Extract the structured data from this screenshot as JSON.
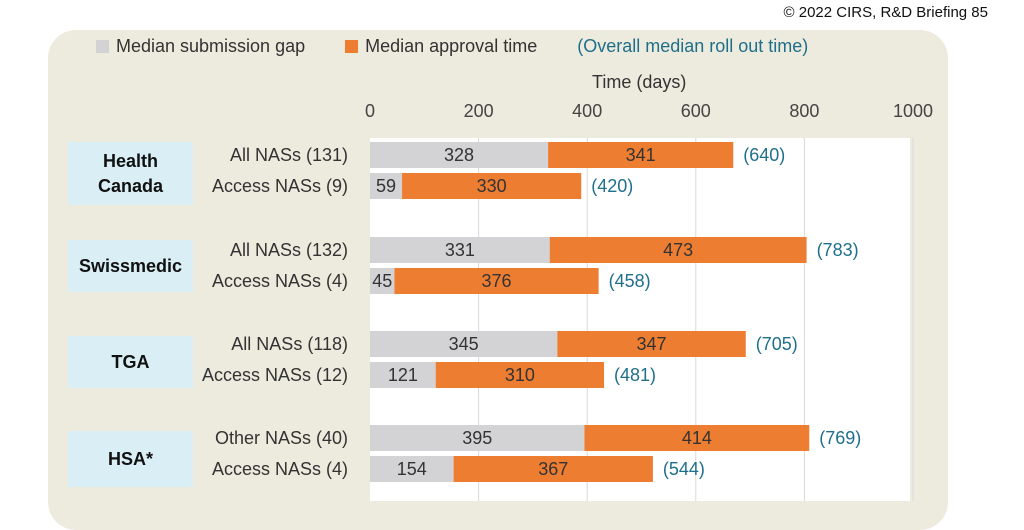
{
  "copyright": "© 2022 CIRS, R&D Briefing 85",
  "legend": {
    "gap": "Median submission gap",
    "approval": "Median approval time",
    "overall": "(Overall median roll out time)"
  },
  "colors": {
    "gap": "#d3d2d4",
    "approval": "#ed7d31",
    "overall": "#1f6f8b",
    "box": "#d9eef5",
    "panel": "#edeade"
  },
  "chart_data": {
    "type": "bar",
    "orientation": "horizontal",
    "stacked": true,
    "xlabel": "Time (days)",
    "xlim": [
      0,
      1000
    ],
    "xticks": [
      0,
      200,
      400,
      600,
      800,
      1000
    ],
    "grid": true,
    "legend_position": "top",
    "series": [
      {
        "name": "Median submission gap",
        "values": [
          328,
          59,
          331,
          45,
          345,
          121,
          395,
          154
        ]
      },
      {
        "name": "Median approval time",
        "values": [
          341,
          330,
          473,
          376,
          347,
          310,
          414,
          367
        ]
      }
    ],
    "groups": [
      {
        "agency": "Health Canada",
        "rows": [
          {
            "label": "All NASs (131)",
            "gap": 328,
            "approval": 341,
            "total": "(640)"
          },
          {
            "label": "Access NASs (9)",
            "gap": 59,
            "approval": 330,
            "total": "(420)"
          }
        ]
      },
      {
        "agency": "Swissmedic",
        "rows": [
          {
            "label": "All NASs (132)",
            "gap": 331,
            "approval": 473,
            "total": "(783)"
          },
          {
            "label": "Access NASs (4)",
            "gap": 45,
            "approval": 376,
            "total": "(458)"
          }
        ]
      },
      {
        "agency": "TGA",
        "rows": [
          {
            "label": "All NASs (118)",
            "gap": 345,
            "approval": 347,
            "total": "(705)"
          },
          {
            "label": "Access NASs (12)",
            "gap": 121,
            "approval": 310,
            "total": "(481)"
          }
        ]
      },
      {
        "agency": "HSA*",
        "rows": [
          {
            "label": "Other NASs (40)",
            "gap": 395,
            "approval": 414,
            "total": "(769)"
          },
          {
            "label": "Access NASs (4)",
            "gap": 154,
            "approval": 367,
            "total": "(544)"
          }
        ]
      }
    ]
  }
}
